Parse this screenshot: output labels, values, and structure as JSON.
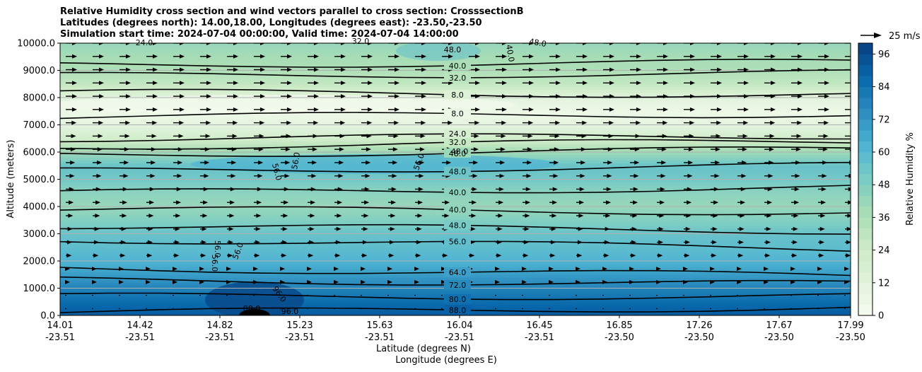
{
  "chart_data": {
    "type": "contour",
    "title_lines": [
      "Relative Humidity cross section and wind vectors parallel to cross section: CrosssectionB",
      "Latitudes (degrees north): 14.00,18.00, Longitudes (degrees east): -23.50,-23.50",
      "Simulation start time: 2024-07-04 00:00:00, Valid time: 2024-07-04 14:00:00"
    ],
    "ylabel": "Altitude (meters)",
    "xlabel_lat": "Latitude (degrees N)",
    "xlabel_lon": "Longitude (degrees E)",
    "ylim": [
      0,
      10000
    ],
    "y_ticks": [
      "0.0",
      "1000.0",
      "2000.0",
      "3000.0",
      "4000.0",
      "5000.0",
      "6000.0",
      "7000.0",
      "8000.0",
      "9000.0",
      "10000.0"
    ],
    "x_ticks": [
      {
        "lat": "14.01",
        "lon": "-23.51"
      },
      {
        "lat": "14.42",
        "lon": "-23.51"
      },
      {
        "lat": "14.82",
        "lon": "-23.51"
      },
      {
        "lat": "15.23",
        "lon": "-23.51"
      },
      {
        "lat": "15.63",
        "lon": "-23.51"
      },
      {
        "lat": "16.04",
        "lon": "-23.51"
      },
      {
        "lat": "16.45",
        "lon": "-23.51"
      },
      {
        "lat": "16.85",
        "lon": "-23.50"
      },
      {
        "lat": "17.26",
        "lon": "-23.50"
      },
      {
        "lat": "17.67",
        "lon": "-23.50"
      },
      {
        "lat": "17.99",
        "lon": "-23.50"
      }
    ],
    "colorbar": {
      "label": "Relative Humidity %",
      "range": [
        0,
        100
      ],
      "ticks": [
        "0",
        "12",
        "24",
        "36",
        "48",
        "60",
        "72",
        "84",
        "96"
      ]
    },
    "quiver_key": "25 m/s",
    "rh_profile": [
      {
        "alt": 0,
        "rh": 92
      },
      {
        "alt": 500,
        "rh": 86
      },
      {
        "alt": 1000,
        "rh": 78
      },
      {
        "alt": 1500,
        "rh": 70
      },
      {
        "alt": 2000,
        "rh": 62
      },
      {
        "alt": 2500,
        "rh": 58
      },
      {
        "alt": 3000,
        "rh": 55
      },
      {
        "alt": 3500,
        "rh": 48
      },
      {
        "alt": 4000,
        "rh": 42
      },
      {
        "alt": 4500,
        "rh": 45
      },
      {
        "alt": 5000,
        "rh": 52
      },
      {
        "alt": 5500,
        "rh": 55
      },
      {
        "alt": 6000,
        "rh": 40
      },
      {
        "alt": 6500,
        "rh": 22
      },
      {
        "alt": 7000,
        "rh": 10
      },
      {
        "alt": 7500,
        "rh": 5
      },
      {
        "alt": 8000,
        "rh": 12
      },
      {
        "alt": 8500,
        "rh": 28
      },
      {
        "alt": 9000,
        "rh": 35
      },
      {
        "alt": 9500,
        "rh": 38
      },
      {
        "alt": 10000,
        "rh": 42
      }
    ],
    "contours": [
      {
        "level": "88.0",
        "alt_left": 100,
        "alt_right": 300
      },
      {
        "level": "80.0",
        "alt_left": 700,
        "alt_right": 700
      },
      {
        "level": "72.0",
        "alt_left": 1300,
        "alt_right": 1150
      },
      {
        "level": "64.0",
        "alt_left": 1750,
        "alt_right": 1450
      },
      {
        "level": "56.0",
        "alt_left": 2800,
        "alt_right": 2450
      },
      {
        "level": "48.0",
        "alt_left": 3300,
        "alt_right": 3100
      },
      {
        "level": "40.0",
        "alt_left": 3900,
        "alt_right": 3800
      },
      {
        "level": "40.0",
        "alt_left": 4500,
        "alt_right": 4700
      },
      {
        "level": "48.0",
        "alt_left": 5300,
        "alt_right": 5500
      },
      {
        "level": "48.0",
        "alt_left": 5900,
        "alt_right": 6100
      },
      {
        "level": "32.0",
        "alt_left": 6200,
        "alt_right": 6400
      },
      {
        "level": "24.0",
        "alt_left": 6500,
        "alt_right": 6600
      },
      {
        "level": "8.0",
        "alt_left": 7300,
        "alt_right": 7400
      },
      {
        "level": "8.0",
        "alt_left": 8200,
        "alt_right": 8100
      },
      {
        "level": "32.0",
        "alt_left": 8800,
        "alt_right": 8900
      },
      {
        "level": "40.0",
        "alt_left": 9200,
        "alt_right": 9300
      }
    ],
    "extra_labels": [
      "56.0",
      "56.0",
      "56.0",
      "56.0",
      "56.0",
      "96.0",
      "40.0",
      "48.0",
      "48.0",
      "24.0",
      "32.0",
      "56.0",
      "88.0",
      "96.0",
      "48.0"
    ]
  }
}
